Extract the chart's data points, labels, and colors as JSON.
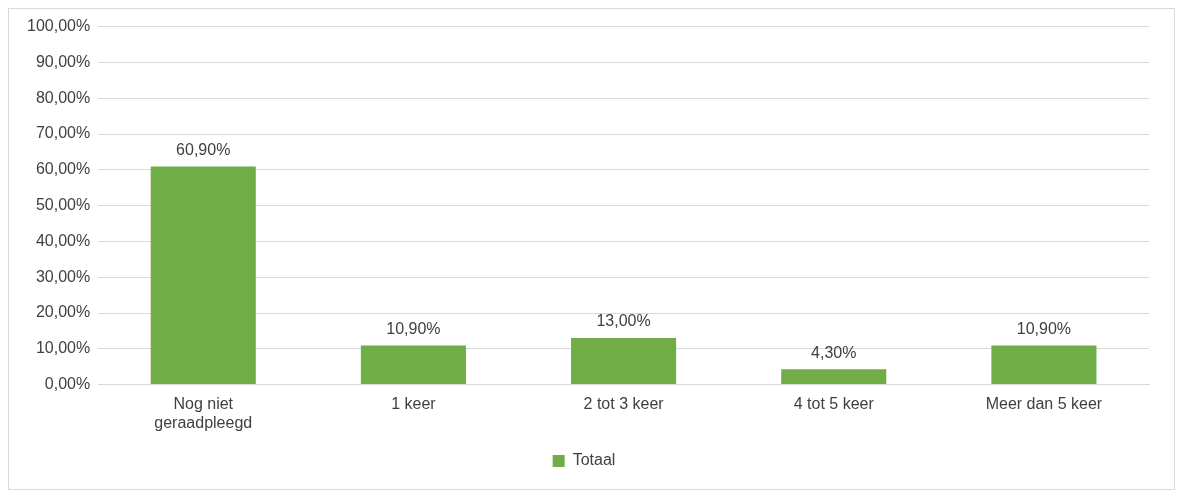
{
  "chart_data": {
    "type": "bar",
    "categories": [
      "Nog niet geraadpleegd",
      "1 keer",
      "2 tot 3 keer",
      "4 tot 5 keer",
      "Meer dan 5 keer"
    ],
    "series": [
      {
        "name": "Totaal",
        "color": "#70ad47",
        "values": [
          60.9,
          10.9,
          13.0,
          4.3,
          10.9
        ],
        "value_labels": [
          "60,90%",
          "10,90%",
          "13,00%",
          "4,30%",
          "10,90%"
        ]
      }
    ],
    "ylim": [
      0,
      100
    ],
    "yticks": [
      {
        "value": 0,
        "label": "0,00%"
      },
      {
        "value": 10,
        "label": "10,00%"
      },
      {
        "value": 20,
        "label": "20,00%"
      },
      {
        "value": 30,
        "label": "30,00%"
      },
      {
        "value": 40,
        "label": "40,00%"
      },
      {
        "value": 50,
        "label": "50,00%"
      },
      {
        "value": 60,
        "label": "60,00%"
      },
      {
        "value": 70,
        "label": "70,00%"
      },
      {
        "value": 80,
        "label": "80,00%"
      },
      {
        "value": 90,
        "label": "90,00%"
      },
      {
        "value": 100,
        "label": "100,00%"
      }
    ],
    "grid": "y",
    "legend": "bottom"
  }
}
